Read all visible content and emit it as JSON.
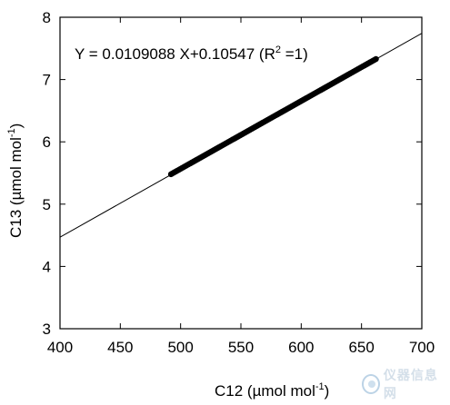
{
  "chart_data": {
    "type": "scatter",
    "title": "",
    "annotation": {
      "equation_main": "Y = 0.0109088 X+0.10547 (R",
      "equation_sup": "2",
      "equation_end": " =1)"
    },
    "xlabel": {
      "main": "C12 (µmol mol",
      "sup": "-1",
      "end": ")"
    },
    "ylabel": {
      "main": "C13 (µmol mol",
      "sup": "-1",
      "end": ")"
    },
    "xlim": [
      400,
      700
    ],
    "ylim": [
      3,
      8
    ],
    "xticks": [
      400,
      450,
      500,
      550,
      600,
      650,
      700
    ],
    "yticks": [
      3,
      4,
      5,
      6,
      7,
      8
    ],
    "grid": false,
    "legend": "none",
    "fit_line": {
      "slope": 0.0109088,
      "intercept": 0.10547,
      "x_range": [
        400,
        700
      ]
    },
    "series": [
      {
        "x_range": [
          492,
          662
        ],
        "y_range": [
          5.48,
          7.33
        ],
        "marker": "filled-circle",
        "color": "#000000"
      }
    ],
    "colors": {
      "line": "#000000",
      "points": "#111111"
    }
  },
  "watermark": {
    "icon": "instrument-logo-icon",
    "text": "仪器信息网"
  }
}
